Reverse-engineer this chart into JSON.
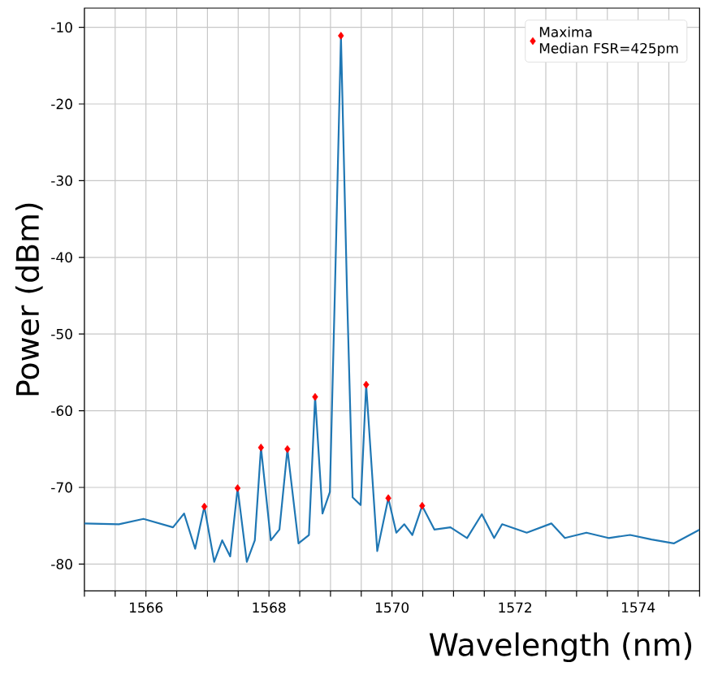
{
  "chart_data": {
    "type": "line",
    "xlabel": "Wavelength (nm)",
    "ylabel": "Power (dBm)",
    "xlim": [
      1565,
      1575
    ],
    "ylim": [
      -83.5,
      -7.5
    ],
    "xticks": [
      {
        "value": 1565,
        "label": null
      },
      {
        "value": 1565.5,
        "label": null
      },
      1566,
      {
        "value": 1566.5,
        "label": null
      },
      {
        "value": 1567,
        "label": null
      },
      {
        "value": 1567.5,
        "label": null
      },
      1568,
      {
        "value": 1568.5,
        "label": null
      },
      {
        "value": 1569,
        "label": null
      },
      {
        "value": 1569.5,
        "label": null
      },
      1570,
      {
        "value": 1570.5,
        "label": null
      },
      {
        "value": 1571,
        "label": null
      },
      {
        "value": 1571.5,
        "label": null
      },
      1572,
      {
        "value": 1572.5,
        "label": null
      },
      {
        "value": 1573,
        "label": null
      },
      {
        "value": 1573.5,
        "label": null
      },
      1574,
      {
        "value": 1574.5,
        "label": null
      },
      {
        "value": 1575,
        "label": null
      }
    ],
    "yticks": [
      -10,
      -20,
      -30,
      -40,
      -50,
      -60,
      -70,
      -80
    ],
    "grid": true,
    "legend": "top right",
    "annotations": [
      "Median FSR=425pm"
    ],
    "series": [
      {
        "color": "#1f77b4",
        "marker": "none",
        "x": [
          1565.0,
          1565.56,
          1565.96,
          1566.44,
          1566.62,
          1566.8,
          1566.95,
          1567.11,
          1567.24,
          1567.37,
          1567.49,
          1567.64,
          1567.77,
          1567.87,
          1568.03,
          1568.17,
          1568.3,
          1568.48,
          1568.65,
          1568.75,
          1568.87,
          1568.99,
          1569.07,
          1569.17,
          1569.27,
          1569.36,
          1569.49,
          1569.58,
          1569.76,
          1569.94,
          1570.07,
          1570.2,
          1570.33,
          1570.49,
          1570.69,
          1570.95,
          1571.22,
          1571.46,
          1571.66,
          1571.79,
          1572.19,
          1572.59,
          1572.81,
          1573.16,
          1573.52,
          1573.87,
          1574.22,
          1574.58,
          1575.0
        ],
        "values": [
          -74.7,
          -74.8,
          -74.1,
          -75.2,
          -73.4,
          -78.0,
          -72.5,
          -79.7,
          -76.9,
          -79.0,
          -70.1,
          -79.7,
          -76.9,
          -64.8,
          -76.9,
          -75.5,
          -65.0,
          -77.3,
          -76.2,
          -58.2,
          -73.4,
          -70.6,
          -45,
          -11.1,
          -45,
          -71.3,
          -72.3,
          -56.6,
          -78.3,
          -71.4,
          -75.9,
          -74.8,
          -76.2,
          -72.4,
          -75.5,
          -75.2,
          -76.6,
          -73.5,
          -76.6,
          -74.8,
          -75.9,
          -74.7,
          -76.6,
          -75.9,
          -76.6,
          -76.2,
          -76.8,
          -77.3,
          -75.5
        ]
      },
      {
        "type": "scatter",
        "name": "Maxima",
        "color": "#ff0000",
        "marker": "diamond",
        "x": [
          1566.95,
          1567.49,
          1567.87,
          1568.3,
          1568.75,
          1569.17,
          1569.58,
          1569.94,
          1570.49
        ],
        "values": [
          -72.5,
          -70.1,
          -64.8,
          -65.0,
          -58.2,
          -11.1,
          -56.6,
          -71.4,
          -72.4
        ]
      }
    ]
  }
}
